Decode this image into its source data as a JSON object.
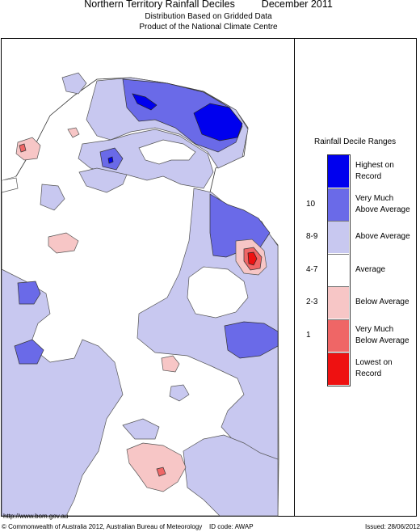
{
  "header": {
    "title": "Northern Territory Rainfall Deciles",
    "period": "December 2011",
    "subtitle_line1": "Distribution Based on Gridded Data",
    "subtitle_line2": "Product of the National Climate Centre"
  },
  "legend": {
    "title": "Rainfall Decile Ranges",
    "categories": [
      {
        "label_line1": "Highest on",
        "label_line2": "Record",
        "decile": "",
        "color": "#0000ee"
      },
      {
        "label_line1": "Very Much",
        "label_line2": "Above Average",
        "decile": "10",
        "color": "#6a6ae8"
      },
      {
        "label_line1": "Above Average",
        "label_line2": "",
        "decile": "8-9",
        "color": "#c8c8f0"
      },
      {
        "label_line1": "Average",
        "label_line2": "",
        "decile": "4-7",
        "color": "#ffffff"
      },
      {
        "label_line1": "Below Average",
        "label_line2": "",
        "decile": "2-3",
        "color": "#f7c6c6"
      },
      {
        "label_line1": "Very Much",
        "label_line2": "Below Average",
        "decile": "1",
        "color": "#ef6666"
      },
      {
        "label_line1": "Lowest on",
        "label_line2": "Record",
        "decile": "",
        "color": "#ee1111"
      }
    ]
  },
  "footer": {
    "url": "http://www.bom.gov.au",
    "copyright": "© Commonwealth of Australia 2012, Australian Bureau of Meteorology",
    "id_code": "ID code: AWAP",
    "issued": "Issued: 28/06/2012"
  }
}
